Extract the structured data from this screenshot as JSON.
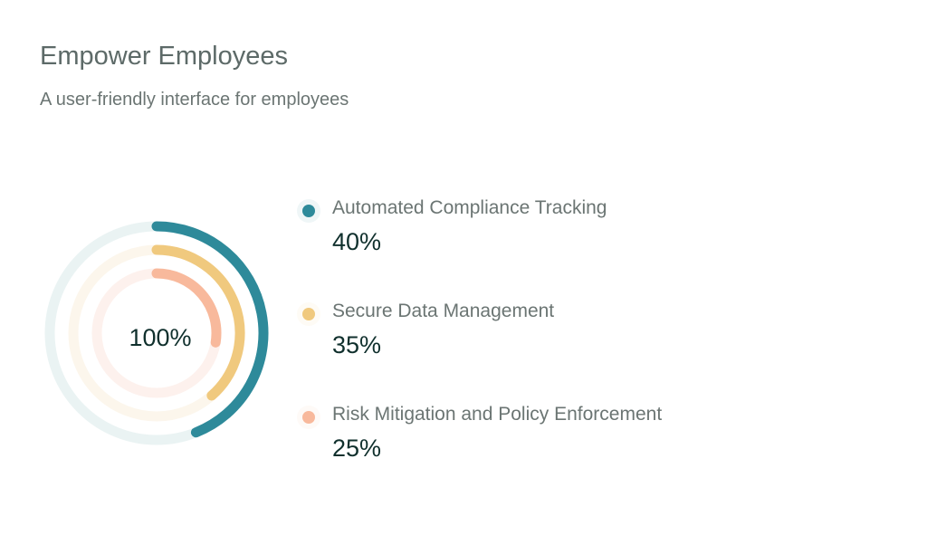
{
  "header": {
    "title": "Empower Employees",
    "subtitle": "A user-friendly interface for employees"
  },
  "chart_data": {
    "type": "radial-bar",
    "center_label": "100%",
    "series": [
      {
        "name": "Automated Compliance Tracking",
        "value": 40,
        "label": "40%",
        "color": "#2e8a9a",
        "track": "#eaf3f3"
      },
      {
        "name": "Secure Data Management",
        "value": 35,
        "label": "35%",
        "color": "#f0c97e",
        "track": "#fcf6ec"
      },
      {
        "name": "Risk Mitigation and Policy Enforcement",
        "value": 25,
        "label": "25%",
        "color": "#f8b99c",
        "track": "#fdf1ed"
      }
    ]
  }
}
